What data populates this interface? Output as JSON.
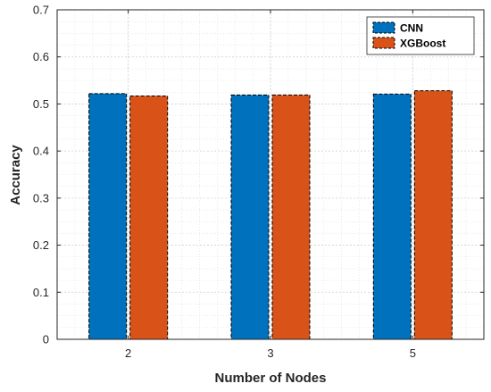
{
  "chart_data": {
    "type": "bar",
    "title": "",
    "xlabel": "Number of Nodes",
    "ylabel": "Accuracy",
    "categories": [
      "2",
      "3",
      "5"
    ],
    "ylim": [
      0,
      0.7
    ],
    "yticks": [
      "0",
      "0.1",
      "0.2",
      "0.3",
      "0.4",
      "0.5",
      "0.6",
      "0.7"
    ],
    "grid": "on (major and minor)",
    "legend_position": "top-right",
    "series": [
      {
        "name": "CNN",
        "color": "#0072BD",
        "values": [
          0.522,
          0.519,
          0.521
        ]
      },
      {
        "name": "XGBoost",
        "color": "#D95319",
        "values": [
          0.517,
          0.519,
          0.528
        ]
      }
    ]
  }
}
